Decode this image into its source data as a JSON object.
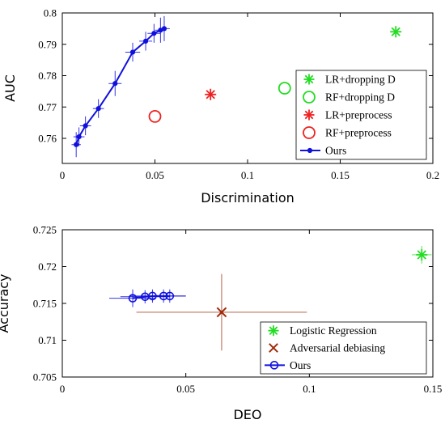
{
  "chart_data": [
    {
      "type": "scatter",
      "xlabel": "Discrimination",
      "ylabel": "AUC",
      "xlim": [
        0,
        0.2
      ],
      "ylim": [
        0.752,
        0.8
      ],
      "xticks": [
        0,
        0.05,
        0.1,
        0.15,
        0.2
      ],
      "xtick_labels": [
        "0",
        "0.05",
        "0.1",
        "0.15",
        "0.2"
      ],
      "yticks": [
        0.76,
        0.77,
        0.78,
        0.79,
        0.8
      ],
      "ytick_labels": [
        "0.76",
        "0.77",
        "0.78",
        "0.79",
        "0.8"
      ],
      "grid": false,
      "legend_position": "bottom-right",
      "series": [
        {
          "name": "LR+dropping D",
          "marker": "asterisk",
          "color": "#22dd22",
          "points": [
            [
              0.18,
              0.794
            ]
          ]
        },
        {
          "name": "RF+dropping D",
          "marker": "circle",
          "color": "#22dd22",
          "points": [
            [
              0.12,
              0.776
            ]
          ]
        },
        {
          "name": "LR+preprocess",
          "marker": "asterisk",
          "color": "#ee2222",
          "points": [
            [
              0.08,
              0.774
            ]
          ]
        },
        {
          "name": "RF+preprocess",
          "marker": "circle",
          "color": "#ee2222",
          "points": [
            [
              0.05,
              0.767
            ]
          ]
        },
        {
          "name": "Ours",
          "marker": "dot-line",
          "color": "#1010dd",
          "points": [
            [
              0.0075,
              0.758
            ],
            [
              0.009,
              0.7605
            ],
            [
              0.0125,
              0.764
            ],
            [
              0.0195,
              0.7695
            ],
            [
              0.0285,
              0.7775
            ],
            [
              0.038,
              0.7875
            ],
            [
              0.045,
              0.791
            ],
            [
              0.0495,
              0.7935
            ],
            [
              0.053,
              0.7945
            ],
            [
              0.055,
              0.795
            ]
          ],
          "xerr": [
            0.0025,
            0.003,
            0.003,
            0.003,
            0.0035,
            0.004,
            0.0035,
            0.0035,
            0.003,
            0.003
          ],
          "yerr": [
            0.004,
            0.003,
            0.003,
            0.003,
            0.004,
            0.003,
            0.003,
            0.003,
            0.004,
            0.004
          ]
        }
      ]
    },
    {
      "type": "scatter",
      "xlabel": "DEO",
      "ylabel": "Accuracy",
      "xlim": [
        0,
        0.15
      ],
      "ylim": [
        0.705,
        0.725
      ],
      "xticks": [
        0,
        0.05,
        0.1,
        0.15
      ],
      "xtick_labels": [
        "0",
        "0.05",
        "0.1",
        "0.15"
      ],
      "yticks": [
        0.705,
        0.71,
        0.715,
        0.72,
        0.725
      ],
      "ytick_labels": [
        "0.705",
        "0.71",
        "0.715",
        "0.72",
        "0.725"
      ],
      "grid": false,
      "legend_position": "bottom-right",
      "series": [
        {
          "name": "Logistic Regression",
          "marker": "asterisk",
          "color": "#22dd22",
          "points": [
            [
              0.1455,
              0.7216
            ]
          ],
          "xerr": [
            0.004
          ],
          "yerr": [
            0.0012
          ]
        },
        {
          "name": "Adversarial debiasing",
          "marker": "x",
          "color": "#a02a0a",
          "points": [
            [
              0.0645,
              0.7138
            ]
          ],
          "xerr": [
            0.0345
          ],
          "yerr": [
            0.0052
          ]
        },
        {
          "name": "Ours",
          "marker": "circle-line",
          "color": "#1010dd",
          "points": [
            [
              0.0285,
              0.7157
            ],
            [
              0.0335,
              0.7159
            ],
            [
              0.0365,
              0.716
            ],
            [
              0.041,
              0.716
            ],
            [
              0.0435,
              0.716
            ]
          ],
          "xerr": [
            0.0095,
            0.01,
            0.009,
            0.009,
            0.0065
          ],
          "yerr": [
            0.0012,
            0.0009,
            0.0009,
            0.0009,
            0.0009
          ]
        }
      ]
    }
  ]
}
